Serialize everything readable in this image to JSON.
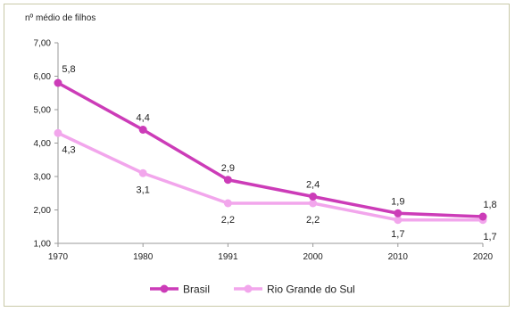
{
  "chart_data": {
    "type": "line",
    "title": "",
    "ylabel": "nº médio de filhos",
    "xlabel": "",
    "categories": [
      "1970",
      "1980",
      "1991",
      "2000",
      "2010",
      "2020"
    ],
    "ylim": [
      1.0,
      7.0
    ],
    "yticks": [
      "1,00",
      "2,00",
      "3,00",
      "4,00",
      "5,00",
      "6,00",
      "7,00"
    ],
    "grid": false,
    "legend_position": "bottom",
    "series": [
      {
        "name": "Brasil",
        "color": "#cc3cb8",
        "values": [
          5.8,
          4.4,
          2.9,
          2.4,
          1.9,
          1.8
        ],
        "labels": [
          "5,8",
          "4,4",
          "2,9",
          "2,4",
          "1,9",
          "1,8"
        ]
      },
      {
        "name": "Rio Grande do Sul",
        "color": "#f2a6ec",
        "values": [
          4.3,
          3.1,
          2.2,
          2.2,
          1.7,
          1.7
        ],
        "labels": [
          "4,3",
          "3,1",
          "2,2",
          "2,2",
          "1,7",
          "1,7"
        ]
      }
    ]
  }
}
